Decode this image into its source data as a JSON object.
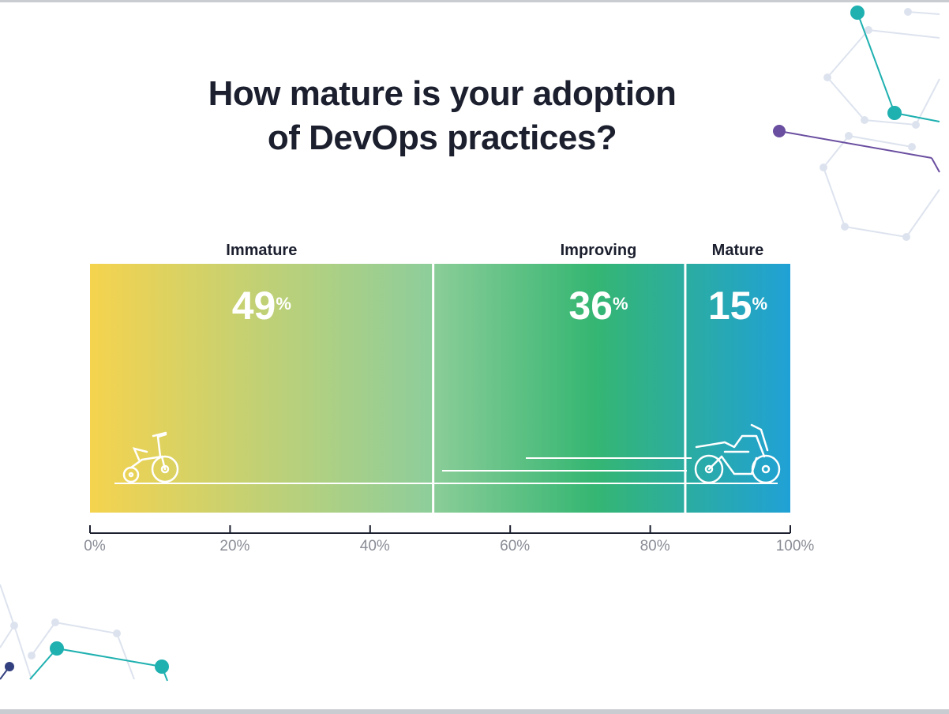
{
  "title_lines": [
    "How mature is your adoption",
    "of DevOps practices?"
  ],
  "colors": {
    "gradient_stops": [
      "#f5d34e",
      "#8fce9a",
      "#35b672",
      "#20a1d6"
    ],
    "divider": "#ffffff",
    "axis": "#1b1f2e",
    "tick_label": "#8a8d96",
    "title": "#1b1f2e",
    "deco_teal": "#1fb0b0",
    "deco_purple": "#6a4ea0",
    "deco_navy": "#33407f",
    "deco_light": "#dde3ee"
  },
  "chart_data": {
    "type": "bar",
    "stacked": true,
    "orientation": "horizontal",
    "title": "How mature is your adoption of DevOps practices?",
    "series": [
      {
        "name": "Immature",
        "value": 49,
        "icon": "tricycle-icon"
      },
      {
        "name": "Improving",
        "value": 36,
        "icon": ""
      },
      {
        "name": "Mature",
        "value": 15,
        "icon": "motorcycle-icon"
      }
    ],
    "value_suffix": "%",
    "xlim": [
      0,
      100
    ],
    "x_ticks": [
      0,
      20,
      40,
      60,
      80,
      100
    ],
    "x_tick_labels": [
      "0%",
      "20%",
      "40%",
      "60%",
      "80%",
      "100%"
    ],
    "xlabel": "",
    "ylabel": "",
    "grid": false,
    "legend": "none"
  }
}
